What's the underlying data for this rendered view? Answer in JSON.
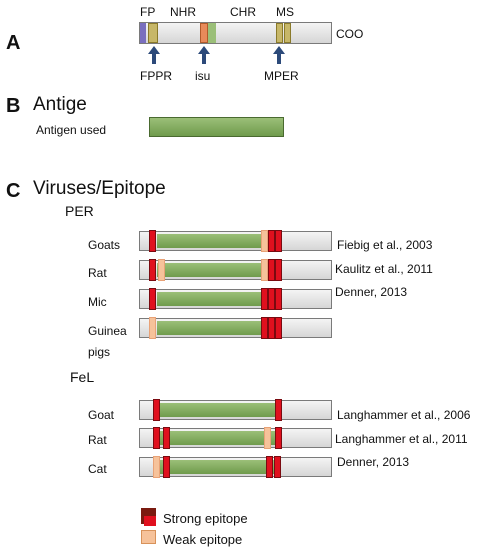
{
  "sectionA": {
    "letter": "A",
    "top_labels": {
      "fp": "FP",
      "nhr": "NHR",
      "chr": "CHR",
      "ms": "MS"
    },
    "end_label": "COO",
    "bottom_labels": {
      "fppr": "FPPR",
      "isu": "isu",
      "mper": "MPER"
    }
  },
  "sectionB": {
    "letter": "B",
    "title": "Antige",
    "antigen_label": "Antigen used"
  },
  "sectionC": {
    "letter": "C",
    "title": "Viruses/Epitope",
    "group1": "PER",
    "group2": "FeL",
    "rows": [
      {
        "animal": "Goats",
        "ref": "Fiebig et al., 2003"
      },
      {
        "animal": "Rat",
        "ref": "Kaulitz et al., 2011"
      },
      {
        "animal": "Mic",
        "ref": "Denner, 2013"
      },
      {
        "animal": "Guinea",
        "animal2": "pigs",
        "ref": ""
      },
      {
        "animal": "Goat",
        "ref": "Langhammer et al., 2006"
      },
      {
        "animal": "Rat",
        "ref": "Langhammer et al., 2011"
      },
      {
        "animal": "Cat",
        "ref": "Denner, 2013"
      }
    ]
  },
  "legend": {
    "strong": "Strong epitope",
    "weak": "Weak epitope",
    "colors": {
      "strong": "#e0101e",
      "strong_dark": "#7a1a10",
      "weak": "#f6c29a",
      "green": "#7aa455"
    }
  }
}
